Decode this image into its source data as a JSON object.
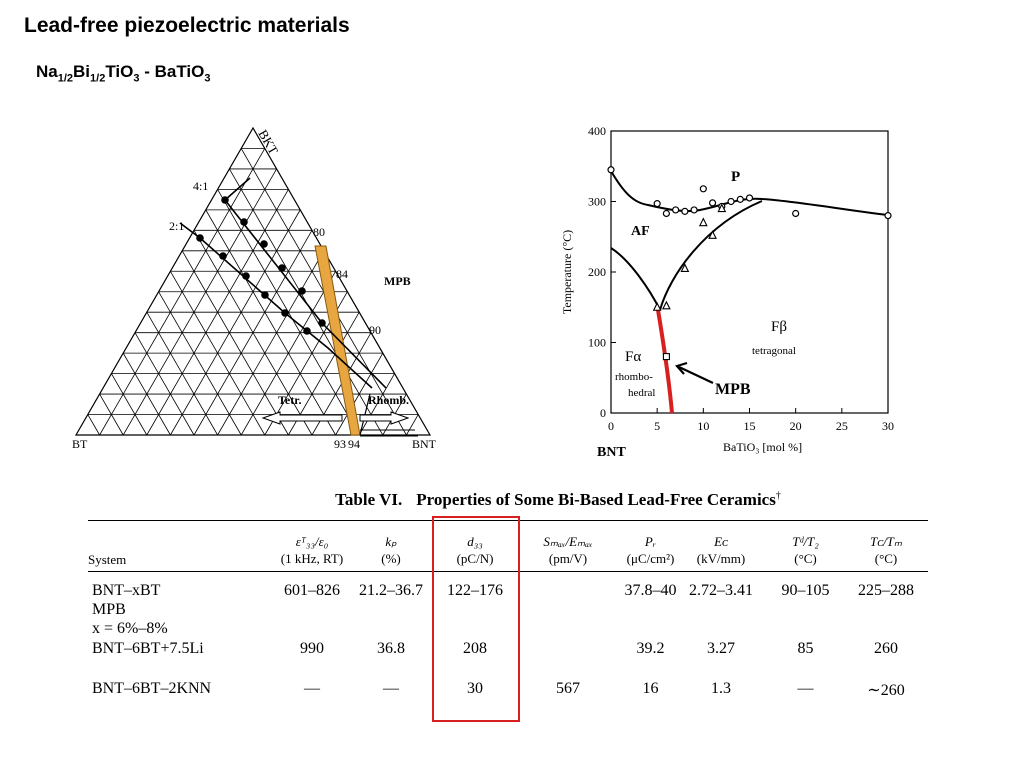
{
  "slide": {
    "title": "Lead-free piezoelectric materials",
    "subtitle": {
      "p1": "Na",
      "s1": "1/2",
      "p2": "Bi",
      "s2": "1/2",
      "p3": "TiO",
      "s3": "3",
      "p4": " - BaTiO",
      "s4": "3"
    }
  },
  "ternary": {
    "corners": {
      "top": "BKT",
      "left": "BT",
      "right": "BNT"
    },
    "ratio_labels": [
      "4:1",
      "2:1"
    ],
    "composition_labels": [
      "80",
      "84",
      "90",
      "93",
      "94"
    ],
    "mpb_label": "MPB",
    "arrow_labels": {
      "left": "Tetr.",
      "right": "Rhomb."
    },
    "colors": {
      "mpb_fill": "#e8a640",
      "lines": "#000000"
    }
  },
  "phase_diagram": {
    "y_axis_label": "Temperature (°C)",
    "x_axis_label": "BaTiO₃ [mol %]",
    "x_ticks": [
      "0",
      "5",
      "10",
      "15",
      "20",
      "25",
      "30"
    ],
    "y_ticks": [
      "0",
      "100",
      "200",
      "300",
      "400"
    ],
    "bnt_label": "BNT",
    "regions": {
      "P": "P",
      "AF": "AF",
      "Fb_symbol": "Fβ",
      "Fb_name": "tetragonal",
      "Fa_symbol": "Fα",
      "Fa_name_line1": "rhombo-",
      "Fa_name_line2": "hedral"
    },
    "mpb_label": "MPB",
    "mpb_color": "#d92020"
  },
  "chart_data": {
    "type": "scatter",
    "title": "",
    "xlabel": "BaTiO₃ [mol %]",
    "ylabel": "Temperature (°C)",
    "xlim": [
      0,
      30
    ],
    "ylim": [
      0,
      400
    ],
    "series": [
      {
        "name": "P-AF/Fb boundary (circles)",
        "marker": "circle",
        "x": [
          0,
          5,
          6,
          7,
          8,
          9,
          10,
          11,
          12,
          13,
          14,
          15,
          20,
          30
        ],
        "y": [
          345,
          297,
          283,
          288,
          286,
          288,
          318,
          298,
          293,
          300,
          303,
          305,
          283,
          280
        ]
      },
      {
        "name": "AF-F boundary (triangles)",
        "marker": "triangle",
        "x": [
          5,
          6,
          8,
          10,
          11,
          12
        ],
        "y": [
          150,
          152,
          205,
          270,
          252,
          290
        ]
      },
      {
        "name": "MPB (squares)",
        "marker": "square",
        "x": [
          6
        ],
        "y": [
          80
        ]
      }
    ]
  },
  "table": {
    "caption_lead": "Table VI.",
    "caption_text": "Properties of Some Bi-Based Lead-Free Ceramics",
    "caption_mark": "†",
    "headers": [
      {
        "sym": "εᵀ₃₃/ε₀",
        "unit": "(1 kHz, RT)"
      },
      {
        "sym": "kₚ",
        "unit": "(%)"
      },
      {
        "sym": "d₃₃",
        "unit": "(pC/N)"
      },
      {
        "sym": "Sₘₐₓ/Eₘₐₓ",
        "unit": "(pm/V)"
      },
      {
        "sym": "Pᵣ",
        "unit": "(μC/cm²)"
      },
      {
        "sym": "Eᴄ",
        "unit": "(kV/mm)"
      },
      {
        "sym": "Tᵈ/T₂",
        "unit": "(°C)"
      },
      {
        "sym": "Tᴄ/Tₘ",
        "unit": "(°C)"
      }
    ],
    "system_header": "System",
    "rows": [
      {
        "system": "BNT–xBT",
        "extra1": "MPB",
        "extra2": "x = 6%–8%",
        "cells": [
          "601–826",
          "21.2–36.7",
          "122–176",
          "",
          "37.8–40",
          "2.72–3.41",
          "90–105",
          "225–288"
        ]
      },
      {
        "system": "BNT–6BT+7.5Li",
        "extra1": "",
        "extra2": "",
        "cells": [
          "990",
          "36.8",
          "208",
          "",
          "39.2",
          "3.27",
          "85",
          "260"
        ]
      },
      {
        "system": "BNT–6BT–2KNN",
        "extra1": "",
        "extra2": "",
        "cells": [
          "—",
          "—",
          "30",
          "567",
          "16",
          "1.3",
          "—",
          "∼260"
        ]
      }
    ],
    "highlight_color": "#d92020"
  }
}
